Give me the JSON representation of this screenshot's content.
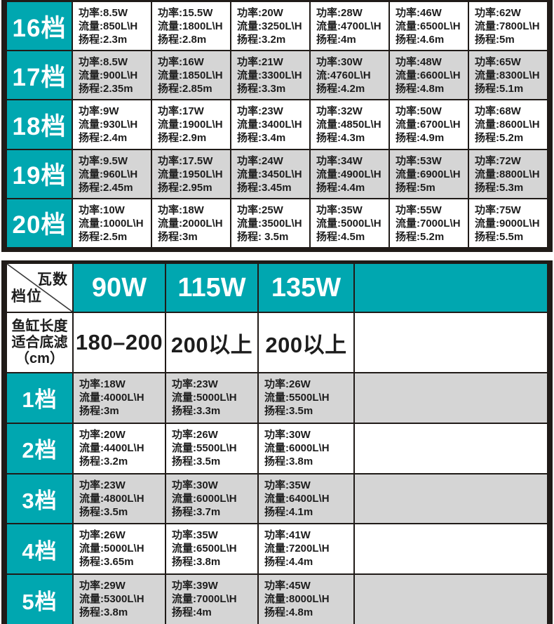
{
  "colors": {
    "teal": "#00a7b0",
    "row_gray": "#d5d5d5",
    "grid_line": "#201b18",
    "text": "#1d1d1d"
  },
  "upper_table": {
    "rows": [
      {
        "label": "16档",
        "cells": [
          [
            "功率:8.5W",
            "流量:850L\\H",
            "扬程:2.3m"
          ],
          [
            "功率:15.5W",
            "流量:1800L\\H",
            "扬程:2.8m"
          ],
          [
            "功率:20W",
            "流量:3250L\\H",
            "扬程:3.2m"
          ],
          [
            "功率:28W",
            "流量:4700L\\H",
            "扬程:4m"
          ],
          [
            "功率:46W",
            "流量:6500L\\H",
            "扬程:4.6m"
          ],
          [
            "功率:62W",
            "流量:7800L\\H",
            "扬程:5m"
          ]
        ]
      },
      {
        "label": "17档",
        "cells": [
          [
            "功率:8.5W",
            "流量:900L\\H",
            "扬程:2.35m"
          ],
          [
            "功率:16W",
            "流量:1850L\\H",
            "扬程:2.85m"
          ],
          [
            "功率:21W",
            "流量:3300L\\H",
            "扬程:3.3m"
          ],
          [
            "功率:30W",
            "流:4760L\\H",
            "扬程:4.2m"
          ],
          [
            "功率:48W",
            "流量:6600L\\H",
            "扬程:4.8m"
          ],
          [
            "功率:65W",
            "流量:8300L\\H",
            "扬程:5.1m"
          ]
        ]
      },
      {
        "label": "18档",
        "cells": [
          [
            "功率:9W",
            "流量:930L\\H",
            "扬程:2.4m"
          ],
          [
            "功率:17W",
            "流量:1900L\\H",
            "扬程:2.9m"
          ],
          [
            "功率:23W",
            "流量:3400L\\H",
            "扬程:3.4m"
          ],
          [
            "功率:32W",
            "流量:4850L\\H",
            "扬程:4.3m"
          ],
          [
            "功率:50W",
            "流量:6700L\\H",
            "扬程:4.9m"
          ],
          [
            "功率:68W",
            "流量:8600L\\H",
            "扬程:5.2m"
          ]
        ]
      },
      {
        "label": "19档",
        "cells": [
          [
            "功率:9.5W",
            "流量:960L\\H",
            "扬程:2.45m"
          ],
          [
            "功率:17.5W",
            "流量:1950L\\H",
            "扬程:2.95m"
          ],
          [
            "功率:24W",
            "流量:3450L\\H",
            "扬程:3.45m"
          ],
          [
            "功率:34W",
            "流量:4900L\\H",
            "扬程:4.4m"
          ],
          [
            "功率:53W",
            "流量:6900L\\H",
            "扬程:5m"
          ],
          [
            "功率:72W",
            "流量:8800L\\H",
            "扬程:5.3m"
          ]
        ]
      },
      {
        "label": "20档",
        "cells": [
          [
            "功率:10W",
            "流量:1000L\\H",
            "扬程:2.5m"
          ],
          [
            "功率:18W",
            "流量:2000L\\H",
            "扬程:3m"
          ],
          [
            "功率:25W",
            "流量:3500L\\H",
            "扬程: 3.5m"
          ],
          [
            "功率:35W",
            "流量:5000L\\H",
            "扬程:4.5m"
          ],
          [
            "功率:55W",
            "流量:7000L\\H",
            "扬程:5.2m"
          ],
          [
            "功率:75W",
            "流量:9000L\\H",
            "扬程:5.5m"
          ]
        ]
      }
    ]
  },
  "lower_table": {
    "corner": {
      "top_right": "瓦数",
      "bottom_left": "档位"
    },
    "wattage_columns": [
      "90W",
      "115W",
      "135W"
    ],
    "tank_row": {
      "label_lines": [
        "鱼缸长度",
        "适合底滤",
        "（cm）"
      ],
      "values": [
        "180–200",
        "200以上",
        "200以上"
      ]
    },
    "rows": [
      {
        "label": "1档",
        "cells": [
          [
            "功率:18W",
            "流量:4000L\\H",
            "扬程:3m"
          ],
          [
            "功率:23W",
            "流量:5000L\\H",
            "扬程:3.3m"
          ],
          [
            "功率:26W",
            "流量:5500L\\H",
            "扬程:3.5m"
          ]
        ]
      },
      {
        "label": "2档",
        "cells": [
          [
            "功率:20W",
            "流量:4400L\\H",
            "扬程:3.2m"
          ],
          [
            "功率:26W",
            "流量:5500L\\H",
            "扬程:3.5m"
          ],
          [
            "功率:30W",
            "流量:6000L\\H",
            "扬程:3.8m"
          ]
        ]
      },
      {
        "label": "3档",
        "cells": [
          [
            "功率:23W",
            "流量:4800L\\H",
            "扬程:3.5m"
          ],
          [
            "功率:30W",
            "流量:6000L\\H",
            "扬程:3.7m"
          ],
          [
            "功率:35W",
            "流量:6400L\\H",
            "扬程:4.1m"
          ]
        ]
      },
      {
        "label": "4档",
        "cells": [
          [
            "功率:26W",
            "流量:5000L\\H",
            "扬程:3.65m"
          ],
          [
            "功率:35W",
            "流量:6500L\\H",
            "扬程:3.8m"
          ],
          [
            "功率:41W",
            "流量:7200L\\H",
            "扬程:4.4m"
          ]
        ]
      },
      {
        "label": "5档",
        "cells": [
          [
            "功率:29W",
            "流量:5300L\\H",
            "扬程:3.8m"
          ],
          [
            "功率:39W",
            "流量:7000L\\H",
            "扬程:4m"
          ],
          [
            "功率:45W",
            "流量:8000L\\H",
            "扬程:4.8m"
          ]
        ]
      }
    ]
  }
}
